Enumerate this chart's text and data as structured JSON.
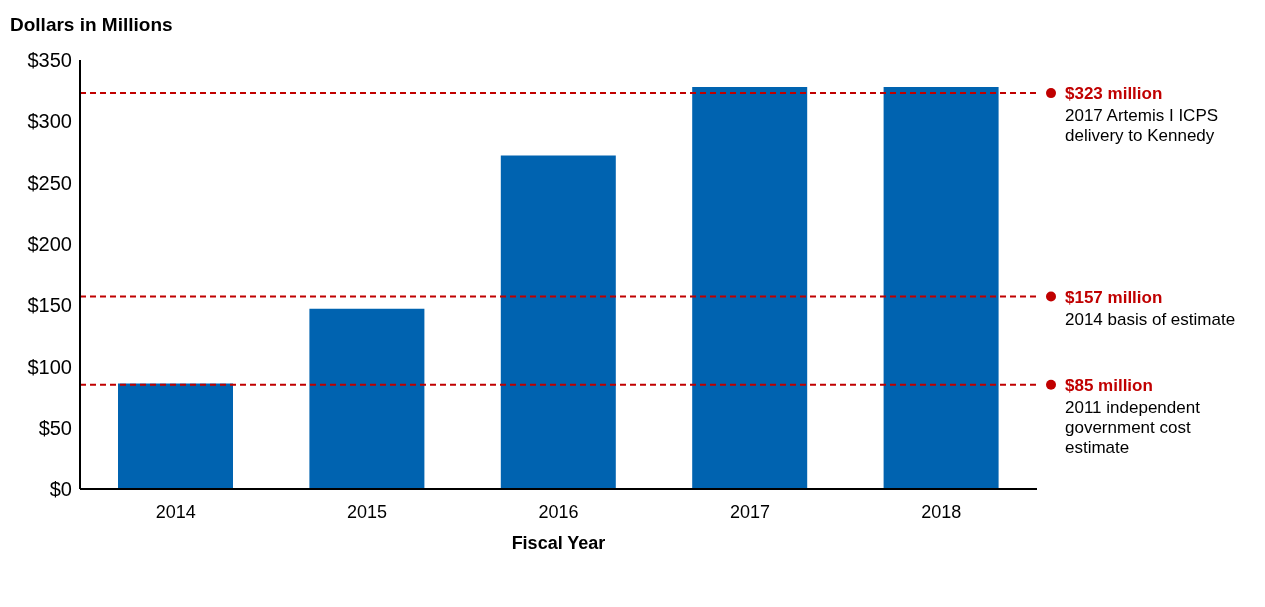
{
  "chart_data": {
    "type": "bar",
    "ylabel": "Dollars in Millions",
    "xlabel": "Fiscal Year",
    "categories": [
      "2014",
      "2015",
      "2016",
      "2017",
      "2018"
    ],
    "values": [
      86,
      147,
      272,
      328,
      328
    ],
    "color": "#0063b0",
    "ylim": [
      0,
      350
    ],
    "yticks": [
      {
        "value": 0,
        "label": "$0"
      },
      {
        "value": 50,
        "label": "$50"
      },
      {
        "value": 100,
        "label": "$100"
      },
      {
        "value": 150,
        "label": "$150"
      },
      {
        "value": 200,
        "label": "$200"
      },
      {
        "value": 250,
        "label": "$250"
      },
      {
        "value": 300,
        "label": "$300"
      },
      {
        "value": 350,
        "label": "$350"
      }
    ],
    "grid": false,
    "legend": false,
    "ref_lines": [
      {
        "axis": "y",
        "value": 323,
        "label": "$323 million",
        "color": "#c00000",
        "line_style": "dashed"
      },
      {
        "axis": "y",
        "value": 157,
        "label": "$157 million",
        "color": "#c00000",
        "line_style": "dashed"
      },
      {
        "axis": "y",
        "value": 85,
        "label": "$85 million",
        "color": "#c00000",
        "line_style": "dashed"
      }
    ],
    "annotations": [
      "2017 Artemis I ICPS delivery to Kennedy",
      "2014 basis of estimate",
      "2011 independent government cost estimate"
    ]
  }
}
